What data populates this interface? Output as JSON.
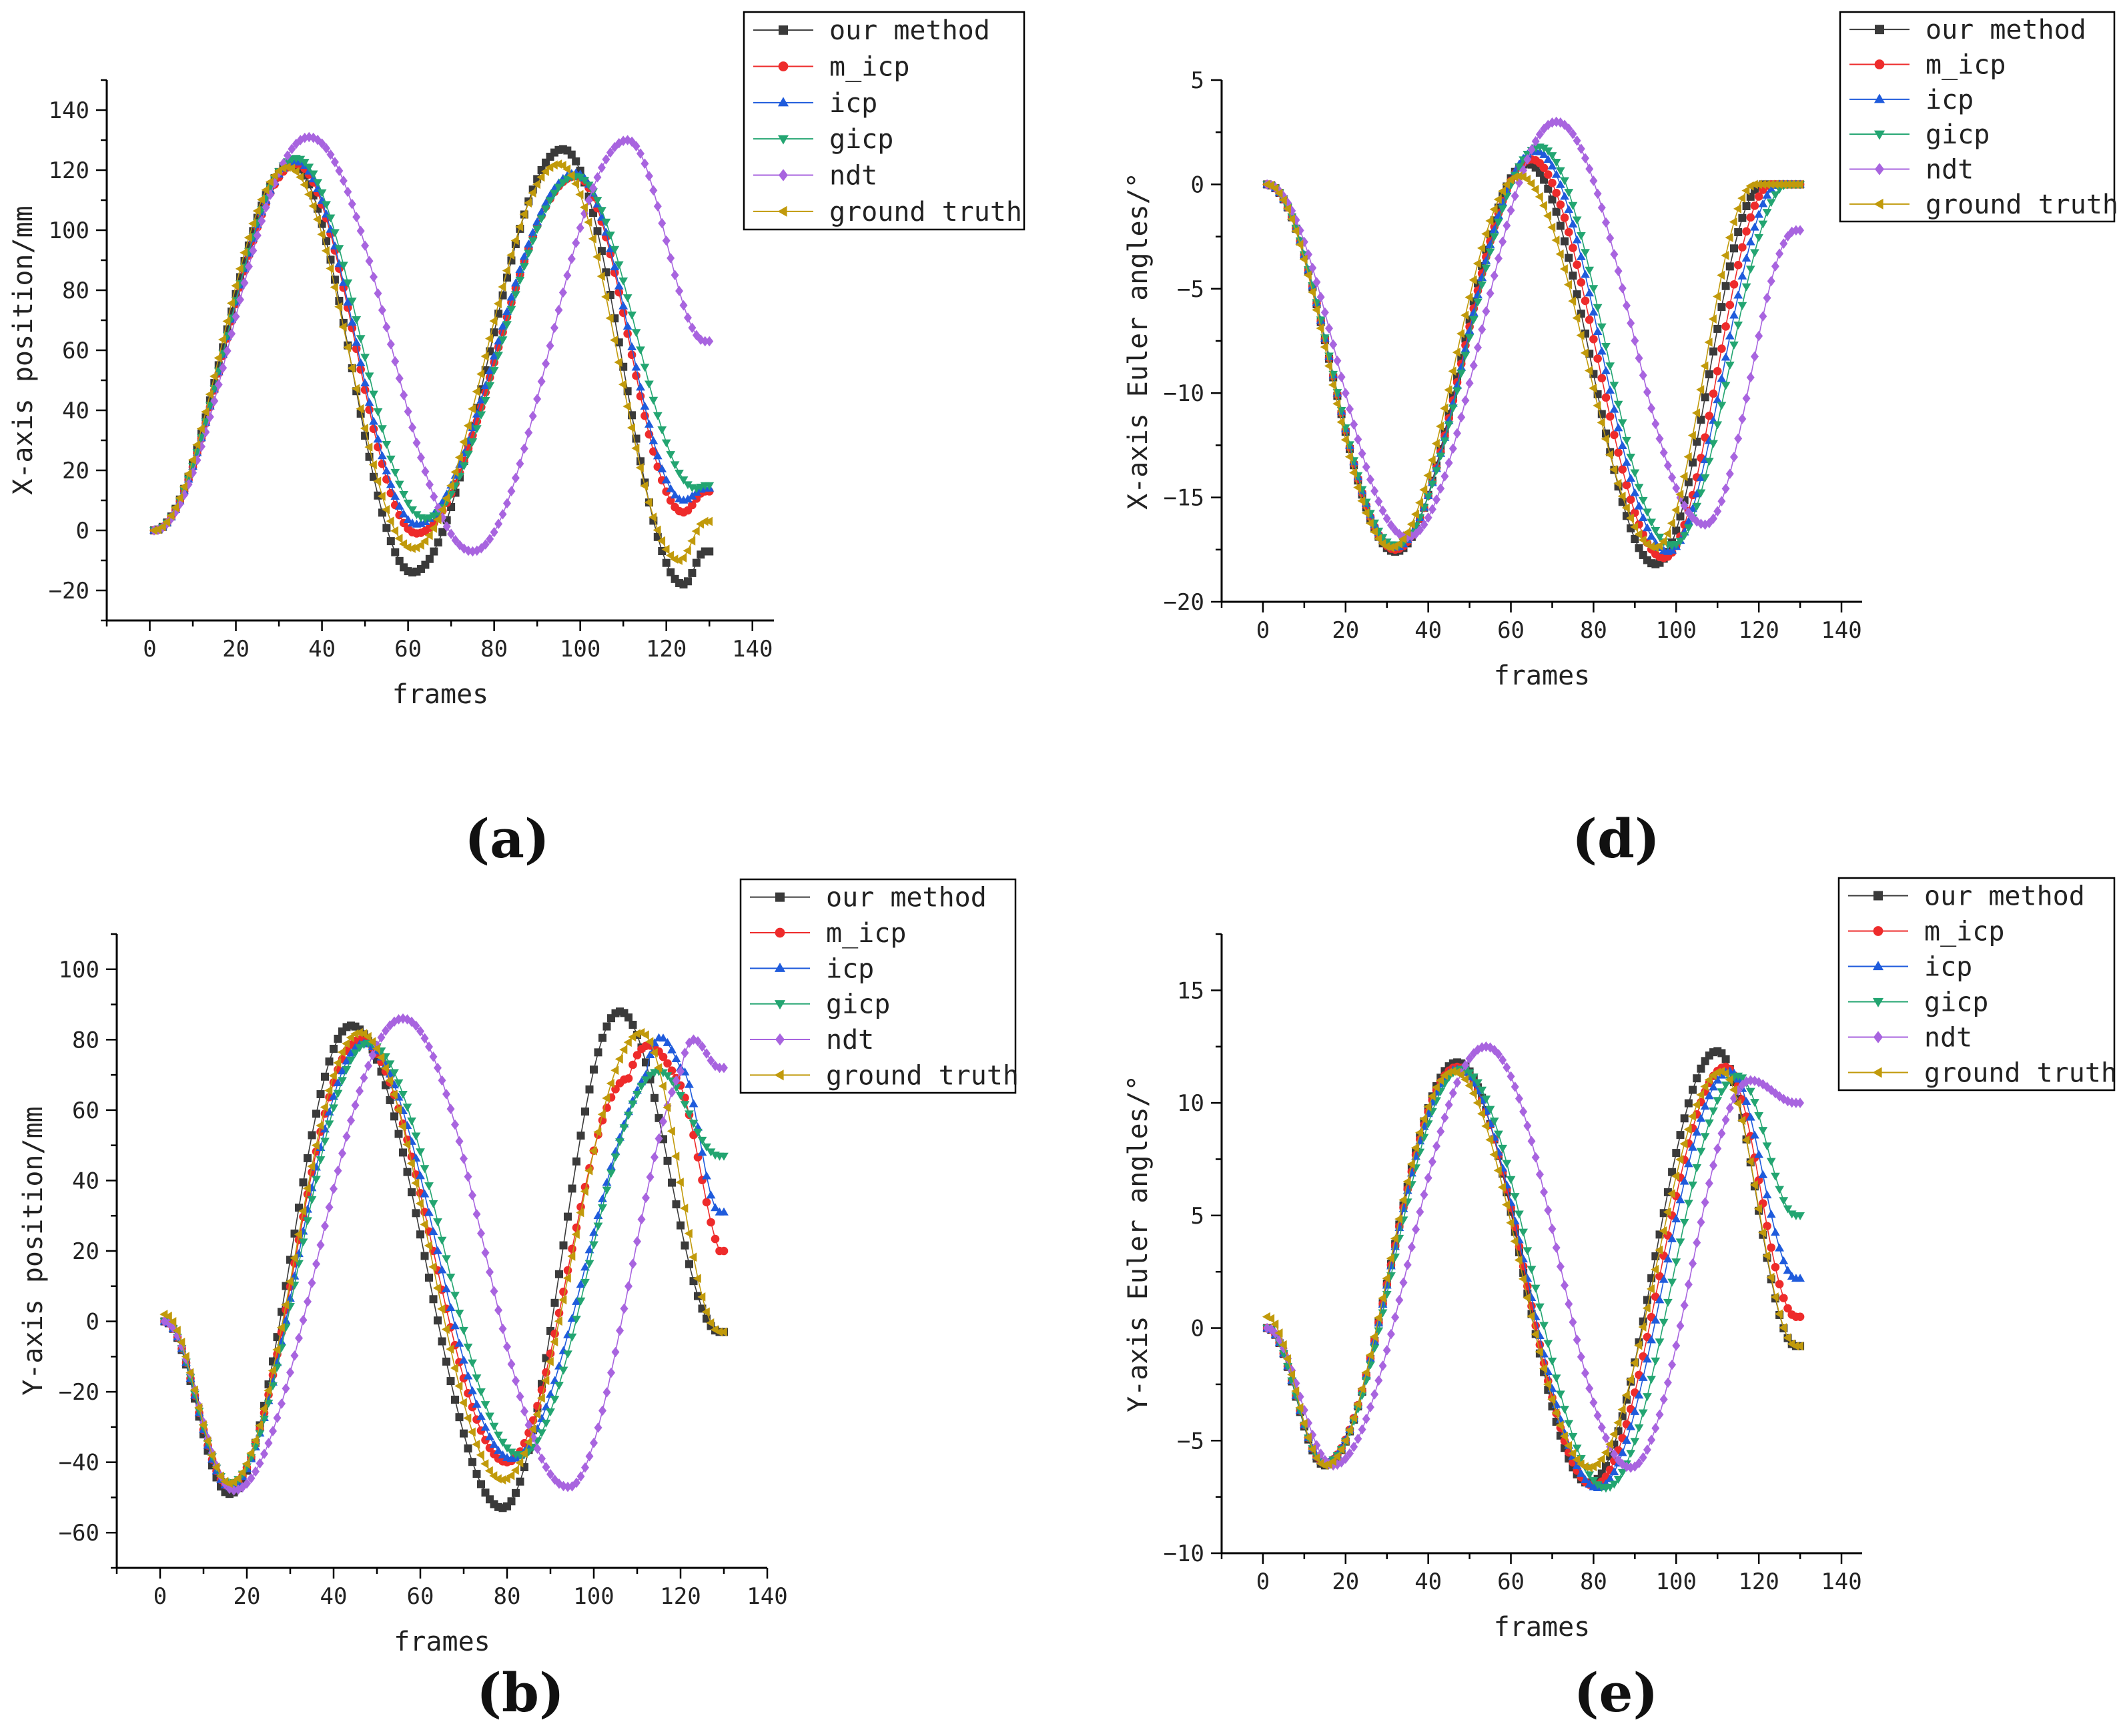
{
  "series_styles": [
    {
      "name": "our method",
      "color": "#3a3a3a",
      "marker": "square"
    },
    {
      "name": "m_icp",
      "color": "#ee2b2b",
      "marker": "circle"
    },
    {
      "name": "icp",
      "color": "#1f5bdc",
      "marker": "triangle-up"
    },
    {
      "name": "gicp",
      "color": "#23a571",
      "marker": "triangle-down"
    },
    {
      "name": "ndt",
      "color": "#a864df",
      "marker": "diamond"
    },
    {
      "name": "ground truth",
      "color": "#c19a0b",
      "marker": "triangle-left"
    }
  ],
  "chart_data": [
    {
      "id": "a",
      "type": "line",
      "panel_label": "(a)",
      "xlabel": "frames",
      "ylabel": "X-axis position/mm",
      "xlim": [
        -10,
        145
      ],
      "ylim": [
        -30,
        150
      ],
      "xticks": [
        0,
        20,
        40,
        60,
        80,
        100,
        120,
        140
      ],
      "yticks": [
        -20,
        0,
        20,
        40,
        60,
        80,
        100,
        120,
        140
      ],
      "frames": [
        1,
        130
      ],
      "legend": [
        "our method",
        "m_icp",
        "icp",
        "gicp",
        "ndt",
        "ground truth"
      ],
      "series": [
        {
          "name": "our method",
          "points": [
            [
              1,
              0
            ],
            [
              33,
              122
            ],
            [
              61,
              -14
            ],
            [
              96,
              127
            ],
            [
              124,
              -18
            ],
            [
              129,
              -7
            ]
          ]
        },
        {
          "name": "m_icp",
          "points": [
            [
              1,
              0
            ],
            [
              34,
              122
            ],
            [
              62,
              -1
            ],
            [
              99,
              118
            ],
            [
              124,
              6
            ],
            [
              129,
              13
            ]
          ]
        },
        {
          "name": "icp",
          "points": [
            [
              1,
              0
            ],
            [
              34,
              123
            ],
            [
              62,
              2
            ],
            [
              99,
              119
            ],
            [
              124,
              10
            ],
            [
              129,
              14
            ]
          ]
        },
        {
          "name": "gicp",
          "points": [
            [
              1,
              0
            ],
            [
              34,
              124
            ],
            [
              64,
              4
            ],
            [
              99,
              118
            ],
            [
              127,
              14
            ],
            [
              129,
              15
            ]
          ]
        },
        {
          "name": "ndt",
          "points": [
            [
              1,
              0
            ],
            [
              37,
              131
            ],
            [
              75,
              -7
            ],
            [
              111,
              130
            ],
            [
              129,
              63
            ]
          ]
        },
        {
          "name": "ground truth",
          "points": [
            [
              1,
              0
            ],
            [
              32,
              121
            ],
            [
              61,
              -6
            ],
            [
              95,
              122
            ],
            [
              123,
              -10
            ],
            [
              129,
              3
            ]
          ]
        }
      ]
    },
    {
      "id": "d",
      "type": "line",
      "panel_label": "(d)",
      "xlabel": "frames",
      "ylabel": "X-axis Euler angles/°",
      "xlim": [
        -10,
        145
      ],
      "ylim": [
        -20,
        5
      ],
      "xticks": [
        0,
        20,
        40,
        60,
        80,
        100,
        120,
        140
      ],
      "yticks": [
        -20,
        -15,
        -10,
        -5,
        0,
        5
      ],
      "frames": [
        1,
        130
      ],
      "legend": [
        "our method",
        "m_icp",
        "icp",
        "gicp",
        "ndt",
        "ground truth"
      ],
      "series": [
        {
          "name": "our method",
          "points": [
            [
              1,
              0
            ],
            [
              32,
              -17.6
            ],
            [
              64,
              1.0
            ],
            [
              95,
              -18.2
            ],
            [
              121,
              0.0
            ]
          ]
        },
        {
          "name": "m_icp",
          "points": [
            [
              1,
              0
            ],
            [
              32,
              -17.5
            ],
            [
              65,
              1.2
            ],
            [
              97,
              -17.9
            ],
            [
              123,
              0.0
            ]
          ]
        },
        {
          "name": "icp",
          "points": [
            [
              1,
              0
            ],
            [
              32,
              -17.4
            ],
            [
              66,
              1.6
            ],
            [
              98,
              -17.6
            ],
            [
              125,
              0.0
            ]
          ]
        },
        {
          "name": "gicp",
          "points": [
            [
              1,
              0
            ],
            [
              32,
              -17.3
            ],
            [
              67,
              1.8
            ],
            [
              99,
              -17.3
            ],
            [
              127,
              0.0
            ]
          ]
        },
        {
          "name": "ndt",
          "points": [
            [
              1,
              0
            ],
            [
              35,
              -16.9
            ],
            [
              71,
              3.0
            ],
            [
              107,
              -16.3
            ],
            [
              129,
              -2.2
            ]
          ]
        },
        {
          "name": "ground truth",
          "points": [
            [
              1,
              0
            ],
            [
              31,
              -17.4
            ],
            [
              62,
              0.4
            ],
            [
              95,
              -17.4
            ],
            [
              119,
              0.0
            ]
          ]
        }
      ]
    },
    {
      "id": "b",
      "type": "line",
      "panel_label": "(b)",
      "xlabel": "frames",
      "ylabel": "Y-axis position/mm",
      "xlim": [
        -10,
        140
      ],
      "ylim": [
        -70,
        110
      ],
      "xticks": [
        0,
        20,
        40,
        60,
        80,
        100,
        120,
        140
      ],
      "yticks": [
        -60,
        -40,
        -20,
        0,
        20,
        40,
        60,
        80,
        100
      ],
      "frames": [
        1,
        130
      ],
      "legend": [
        "our method",
        "m_icp",
        "icp",
        "gicp",
        "ndt",
        "ground truth"
      ],
      "series": [
        {
          "name": "our method",
          "points": [
            [
              1,
              0
            ],
            [
              16,
              -49
            ],
            [
              44,
              84
            ],
            [
              79,
              -53
            ],
            [
              106,
              88
            ],
            [
              129,
              -3
            ]
          ]
        },
        {
          "name": "m_icp",
          "points": [
            [
              1,
              0
            ],
            [
              16,
              -47
            ],
            [
              46,
              80
            ],
            [
              80,
              -40
            ],
            [
              108,
              69
            ],
            [
              120,
              67
            ],
            [
              129,
              20
            ]
          ]
        },
        {
          "name": "icp",
          "points": [
            [
              1,
              0
            ],
            [
              16,
              -47
            ],
            [
              47,
              79
            ],
            [
              81,
              -39
            ],
            [
              112,
              70
            ],
            [
              120,
              72
            ],
            [
              129,
              31
            ]
          ]
        },
        {
          "name": "gicp",
          "points": [
            [
              1,
              0
            ],
            [
              16,
              -46
            ],
            [
              48,
              79
            ],
            [
              83,
              -38
            ],
            [
              115,
              71
            ],
            [
              129,
              47
            ]
          ]
        },
        {
          "name": "ndt",
          "points": [
            [
              1,
              0
            ],
            [
              17,
              -48
            ],
            [
              56,
              86
            ],
            [
              94,
              -47
            ],
            [
              120,
              71
            ],
            [
              129,
              72
            ]
          ]
        },
        {
          "name": "ground truth",
          "points": [
            [
              1,
              2
            ],
            [
              16,
              -46
            ],
            [
              46,
              82
            ],
            [
              79,
              -45
            ],
            [
              111,
              82
            ],
            [
              129,
              -3
            ]
          ]
        }
      ]
    },
    {
      "id": "e",
      "type": "line",
      "panel_label": "(e)",
      "xlabel": "frames",
      "ylabel": "Y-axis Euler angles/°",
      "xlim": [
        -10,
        145
      ],
      "ylim": [
        -10,
        17.5
      ],
      "xticks": [
        0,
        20,
        40,
        60,
        80,
        100,
        120,
        140
      ],
      "yticks": [
        -10,
        -5,
        0,
        5,
        10,
        15
      ],
      "frames": [
        1,
        130
      ],
      "legend": [
        "our method",
        "m_icp",
        "icp",
        "gicp",
        "ndt",
        "ground truth"
      ],
      "series": [
        {
          "name": "our method",
          "points": [
            [
              1,
              0
            ],
            [
              15,
              -6.1
            ],
            [
              47,
              11.8
            ],
            [
              79,
              -6.9
            ],
            [
              110,
              12.3
            ],
            [
              129,
              -0.8
            ]
          ]
        },
        {
          "name": "m_icp",
          "points": [
            [
              1,
              0
            ],
            [
              15,
              -6.0
            ],
            [
              47,
              11.6
            ],
            [
              80,
              -7.0
            ],
            [
              112,
              11.6
            ],
            [
              129,
              0.5
            ]
          ]
        },
        {
          "name": "icp",
          "points": [
            [
              1,
              0
            ],
            [
              15,
              -6.0
            ],
            [
              47,
              11.5
            ],
            [
              81,
              -7.1
            ],
            [
              113,
              11.4
            ],
            [
              129,
              2.2
            ]
          ]
        },
        {
          "name": "gicp",
          "points": [
            [
              1,
              0
            ],
            [
              15,
              -6.0
            ],
            [
              48,
              11.5
            ],
            [
              83,
              -7.1
            ],
            [
              115,
              11.2
            ],
            [
              129,
              5.0
            ]
          ]
        },
        {
          "name": "ndt",
          "points": [
            [
              1,
              0
            ],
            [
              17,
              -6.1
            ],
            [
              54,
              12.5
            ],
            [
              89,
              -6.2
            ],
            [
              118,
              11.0
            ],
            [
              129,
              10.0
            ]
          ]
        },
        {
          "name": "ground truth",
          "points": [
            [
              1,
              0.5
            ],
            [
              15,
              -6.1
            ],
            [
              46,
              11.4
            ],
            [
              79,
              -6.2
            ],
            [
              111,
              11.4
            ],
            [
              129,
              -0.8
            ]
          ]
        }
      ]
    }
  ]
}
